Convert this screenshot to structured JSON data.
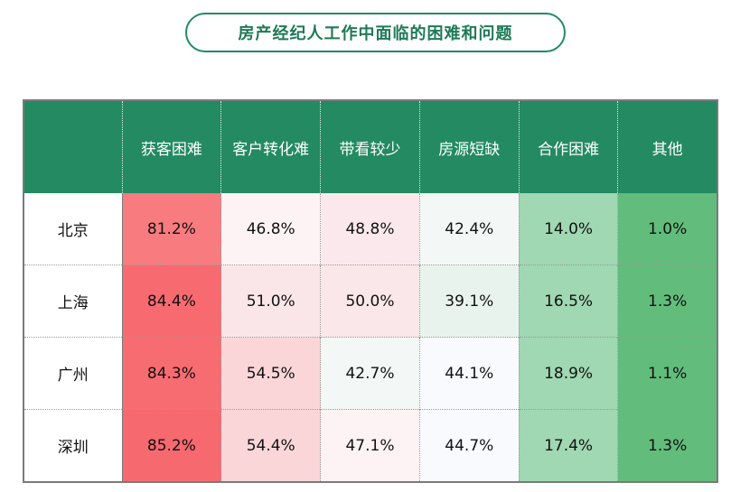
{
  "title": "房产经纪人工作中面临的困难和问题",
  "chart_data": {
    "type": "heatmap",
    "title": "房产经纪人工作中面临的困难和问题",
    "columns": [
      "获客困难",
      "客户转化难",
      "带看较少",
      "房源短缺",
      "合作困难",
      "其他"
    ],
    "rows": [
      {
        "city": "北京",
        "values": [
          "81.2%",
          "46.8%",
          "48.8%",
          "42.4%",
          "14.0%",
          "1.0%"
        ],
        "colors": [
          "#f87b7f",
          "#fdf3f5",
          "#fbe8ec",
          "#f3f8f6",
          "#9fd8b2",
          "#62bc7b"
        ]
      },
      {
        "city": "上海",
        "values": [
          "84.4%",
          "51.0%",
          "50.0%",
          "39.1%",
          "16.5%",
          "1.3%"
        ],
        "colors": [
          "#f76b70",
          "#fae6e9",
          "#fae7ea",
          "#e9f3ed",
          "#9fd8b2",
          "#62bc7b"
        ]
      },
      {
        "city": "广州",
        "values": [
          "84.3%",
          "54.5%",
          "42.7%",
          "44.1%",
          "18.9%",
          "1.1%"
        ],
        "colors": [
          "#f76c70",
          "#fad6d9",
          "#f3f8f6",
          "#f8fafd",
          "#9fd8b2",
          "#62bc7b"
        ]
      },
      {
        "city": "深圳",
        "values": [
          "85.2%",
          "54.4%",
          "47.1%",
          "44.7%",
          "17.4%",
          "1.3%"
        ],
        "colors": [
          "#f6696e",
          "#fad6d9",
          "#fdf3f5",
          "#f8fafd",
          "#9fd8b2",
          "#62bc7b"
        ]
      }
    ]
  },
  "colors": {
    "header_bg": "#238a62",
    "title_border": "#238a62",
    "title_text": "#1f7a56"
  }
}
